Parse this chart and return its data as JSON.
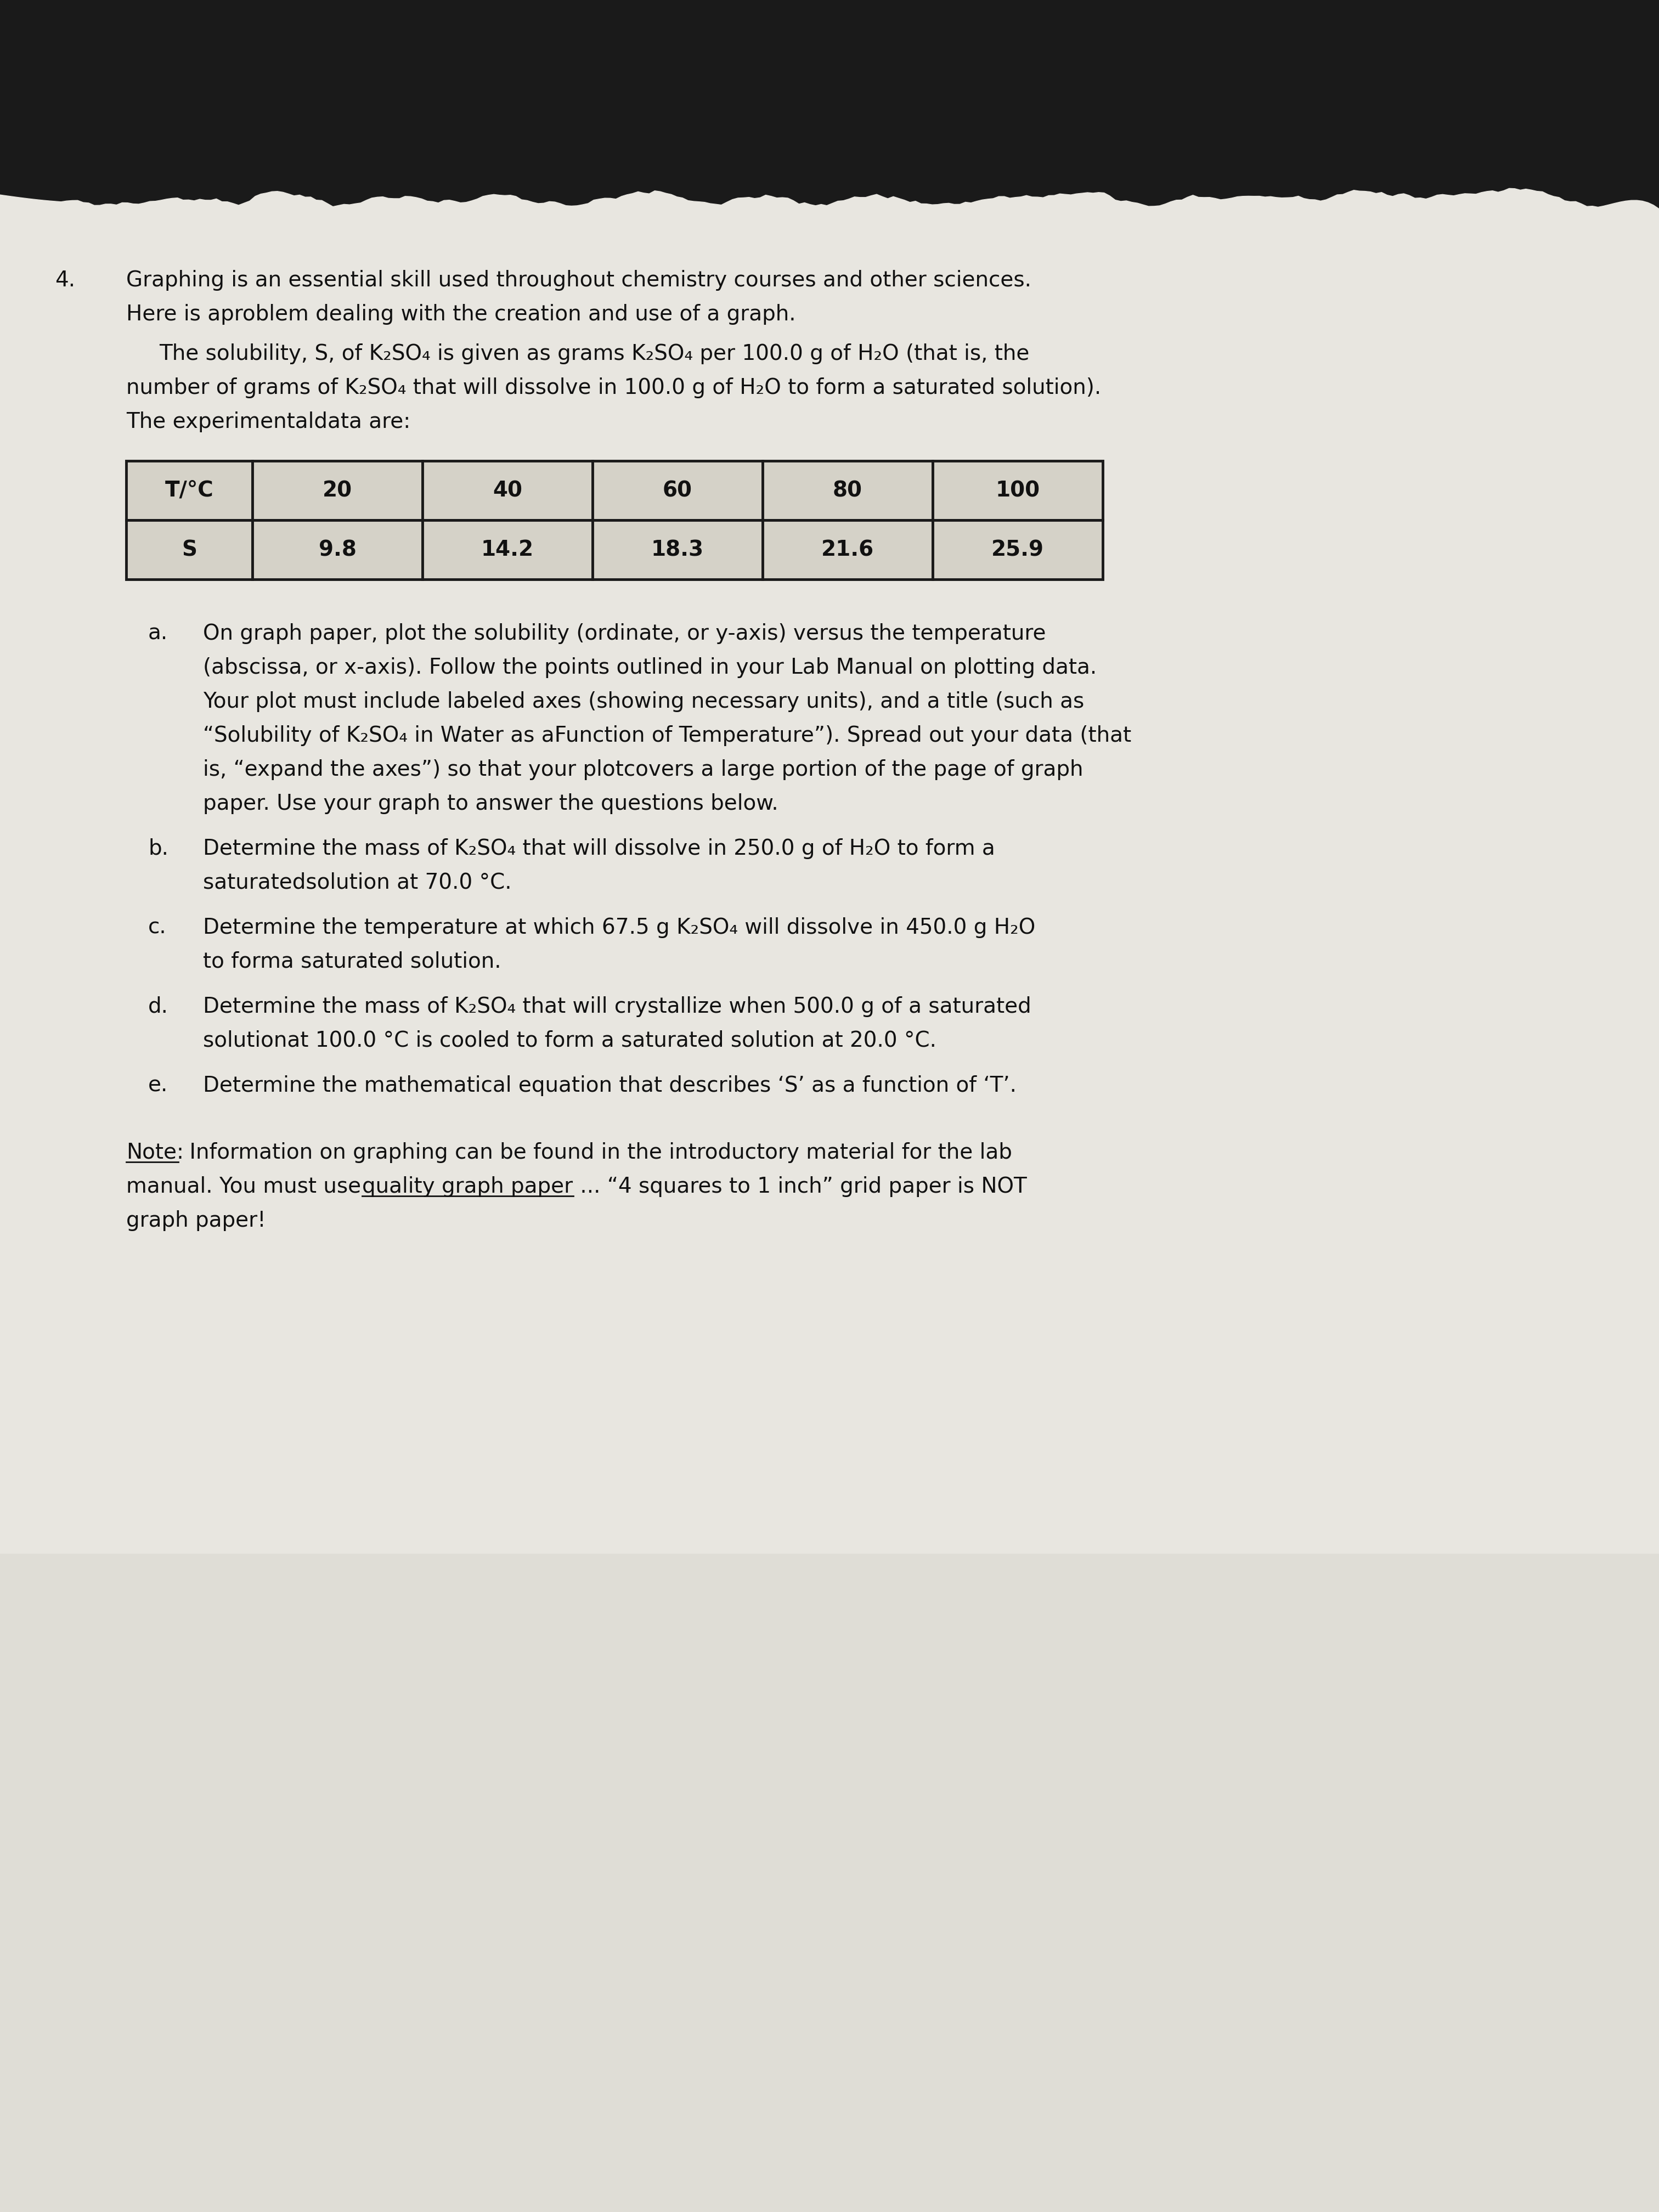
{
  "background_dark": "#1a1a1a",
  "background_paper": "#e8e6e0",
  "question_number": "4.",
  "line1": "Graphing is an essential skill used throughout chemistry courses and other sciences.",
  "line2": "Here is aproblem dealing with the creation and use of a graph.",
  "line3_indent": "The solubility, S, of K₂SO₄ is given as grams K₂SO₄ per 100.0 g of H₂O (that is, the",
  "line4": "number of grams of K₂SO₄ that will dissolve in 100.0 g of H₂O to form a saturated solution).",
  "line5": "The experimentaldata are:",
  "table_headers": [
    "T/°C",
    "20",
    "40",
    "60",
    "80",
    "100"
  ],
  "table_row2": [
    "S",
    "9.8",
    "14.2",
    "18.3",
    "21.6",
    "25.9"
  ],
  "part_a_label": "a.",
  "part_a_lines": [
    "On graph paper, plot the solubility (ordinate, or y-axis) versus the temperature",
    "(abscissa, or x-axis). Follow the points outlined in your Lab Manual on plotting data.",
    "Your plot must include labeled axes (showing necessary units), and a title (such as",
    "“Solubility of K₂SO₄ in Water as aFunction of Temperature”). Spread out your data (that",
    "is, “expand the axes”) so that your plotcovers a large portion of the page of graph",
    "paper. Use your graph to answer the questions below."
  ],
  "part_b_label": "b.",
  "part_b_lines": [
    "Determine the mass of K₂SO₄ that will dissolve in 250.0 g of H₂O to form a",
    "saturatedsolution at 70.0 °C."
  ],
  "part_c_label": "c.",
  "part_c_lines": [
    "Determine the temperature at which 67.5 g K₂SO₄ will dissolve in 450.0 g H₂O",
    "to forma saturated solution."
  ],
  "part_d_label": "d.",
  "part_d_lines": [
    "Determine the mass of K₂SO₄ that will crystallize when 500.0 g of a saturated",
    "solutionat 100.0 °C is cooled to form a saturated solution at 20.0 °C."
  ],
  "part_e_label": "e.",
  "part_e_lines": [
    "Determine the mathematical equation that describes ‘S’ as a function of ‘T’."
  ],
  "note_label": "Note:",
  "note_line1_after": " Information on graphing can be found in the introductory material for the lab",
  "note_line2_before": "manual. You must use ",
  "note_line2_underline": "quality graph paper",
  "note_line2_after": " ... “4 squares to 1 inch” grid paper is NOT",
  "note_line3": "graph paper!"
}
